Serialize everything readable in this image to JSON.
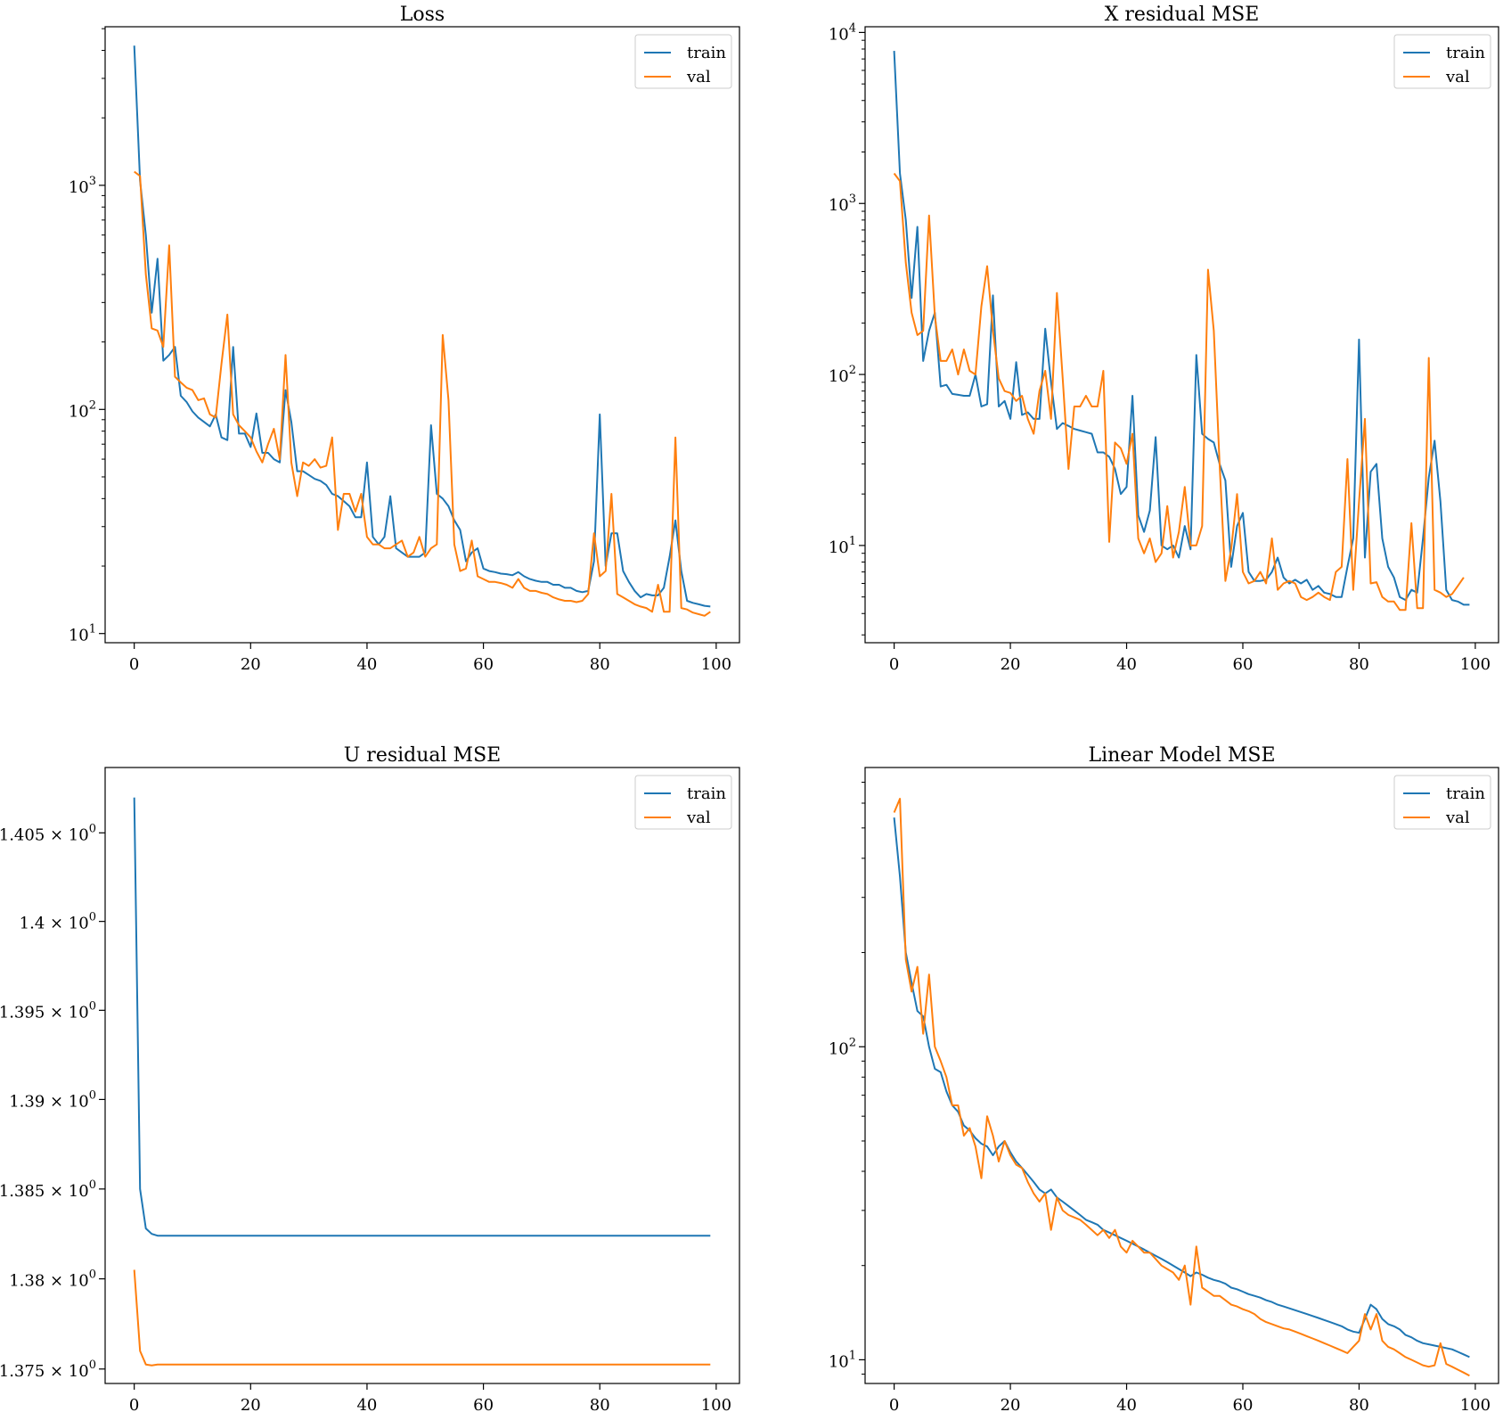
{
  "colors": {
    "train": "#1f77b4",
    "val": "#ff7f0e"
  },
  "chart_data": [
    {
      "type": "line",
      "title": "Loss",
      "yscale": "log",
      "xlim": [
        -5,
        104
      ],
      "ylim": [
        9.1,
        5100
      ],
      "xticks": [
        0,
        20,
        40,
        60,
        80,
        100
      ],
      "yticks": [
        {
          "value": 10,
          "mant": "10",
          "exp": "1"
        },
        {
          "value": 100,
          "mant": "10",
          "exp": "2"
        },
        {
          "value": 1000,
          "mant": "10",
          "exp": "3"
        }
      ],
      "legend": "top-right",
      "series": [
        {
          "name": "train",
          "color": "#1f77b4",
          "values": [
            4200,
            1050,
            600,
            270,
            470,
            165,
            175,
            190,
            115,
            108,
            98,
            92,
            88,
            84,
            95,
            75,
            73,
            190,
            78,
            78,
            68,
            96,
            64,
            64,
            60,
            58,
            122,
            88,
            53,
            53,
            51,
            49,
            48,
            46,
            42,
            41,
            39,
            37,
            33,
            33,
            58,
            27,
            25,
            27,
            41,
            24,
            23,
            22,
            22,
            22,
            23,
            85,
            42,
            40,
            37,
            32,
            29,
            21,
            23,
            24,
            19.5,
            19,
            18.8,
            18.5,
            18.4,
            18.2,
            18.8,
            18,
            17.5,
            17.2,
            17,
            17,
            16.5,
            16.5,
            16,
            16,
            15.5,
            15.3,
            15.5,
            21,
            95,
            20,
            28,
            28,
            19,
            17,
            15.5,
            14.5,
            15,
            14.8,
            14.8,
            16,
            22,
            32,
            19,
            14,
            13.7,
            13.5,
            13.3,
            13.2
          ]
        },
        {
          "name": "val",
          "color": "#ff7f0e",
          "values": [
            1150,
            1100,
            400,
            230,
            225,
            190,
            540,
            140,
            132,
            125,
            122,
            110,
            112,
            95,
            92,
            160,
            265,
            95,
            85,
            80,
            75,
            65,
            58,
            70,
            82,
            60,
            175,
            58,
            41,
            58,
            56,
            60,
            55,
            56,
            75,
            29,
            42,
            42,
            35,
            42,
            27,
            25,
            25,
            24,
            24,
            25,
            26,
            22,
            23,
            27,
            22,
            24,
            25,
            215,
            110,
            25,
            19,
            19.5,
            26,
            18,
            17.5,
            17,
            17,
            16.8,
            16.5,
            16,
            17.5,
            16,
            15.5,
            15.5,
            15.2,
            15,
            14.5,
            14.2,
            14,
            14,
            13.8,
            14,
            15,
            28,
            18,
            19,
            42,
            15,
            14.5,
            14,
            13.5,
            13.2,
            13,
            12.5,
            16.5,
            12.5,
            12.5,
            75,
            13,
            12.8,
            12.4,
            12.2,
            12,
            12.5
          ]
        }
      ]
    },
    {
      "type": "line",
      "title": "X residual MSE",
      "yscale": "log",
      "xlim": [
        -5,
        104
      ],
      "ylim": [
        2.7,
        10800
      ],
      "xticks": [
        0,
        20,
        40,
        60,
        80,
        100
      ],
      "yticks": [
        {
          "value": 10,
          "mant": "10",
          "exp": "1"
        },
        {
          "value": 100,
          "mant": "10",
          "exp": "2"
        },
        {
          "value": 1000,
          "mant": "10",
          "exp": "3"
        },
        {
          "value": 10000,
          "mant": "10",
          "exp": "4"
        }
      ],
      "legend": "top-right",
      "series": [
        {
          "name": "train",
          "color": "#1f77b4",
          "values": [
            7800,
            1500,
            800,
            280,
            730,
            120,
            180,
            230,
            85,
            87,
            77,
            76,
            75,
            75,
            100,
            65,
            67,
            290,
            65,
            70,
            55,
            118,
            58,
            60,
            55,
            55,
            185,
            90,
            48,
            52,
            50,
            48,
            47,
            46,
            45,
            35,
            35,
            33,
            28,
            20,
            22,
            75,
            15,
            12,
            16,
            43,
            10,
            9.5,
            10,
            8.5,
            13,
            9.5,
            130,
            45,
            42,
            40,
            30,
            24,
            7.5,
            13,
            15.5,
            7,
            6.2,
            6.2,
            6.3,
            7,
            8.5,
            6.5,
            6,
            6.3,
            6,
            6.3,
            5.5,
            5.8,
            5.3,
            5.2,
            5,
            5,
            7.5,
            11,
            160,
            8.5,
            27,
            30,
            11,
            7.5,
            6.5,
            5,
            4.8,
            5.5,
            5.3,
            11,
            25,
            41,
            18,
            5.5,
            4.8,
            4.7,
            4.5,
            4.5
          ]
        },
        {
          "name": "val",
          "color": "#ff7f0e",
          "values": [
            1500,
            1350,
            450,
            230,
            170,
            180,
            850,
            220,
            120,
            120,
            140,
            100,
            140,
            105,
            100,
            250,
            430,
            180,
            95,
            80,
            78,
            70,
            75,
            55,
            45,
            80,
            105,
            55,
            300,
            95,
            28,
            65,
            65,
            75,
            65,
            65,
            105,
            10.5,
            40,
            37,
            30,
            45,
            11,
            9,
            11,
            8,
            9,
            17,
            8.5,
            12,
            22,
            10,
            10,
            13,
            410,
            180,
            30,
            6.2,
            9.5,
            20,
            7,
            6,
            6.2,
            7,
            6,
            11,
            5.5,
            6,
            6.2,
            6,
            5,
            4.8,
            5,
            5.3,
            5,
            4.8,
            7,
            7.5,
            32,
            5.5,
            18,
            55,
            6,
            6.1,
            5,
            4.7,
            4.7,
            4.2,
            4.2,
            13.5,
            4.3,
            4.3,
            125,
            5.5,
            5.3,
            5,
            5.2,
            5.8,
            6.5
          ]
        }
      ]
    },
    {
      "type": "line",
      "title": "U residual MSE",
      "yscale": "log",
      "xlim": [
        -5,
        104
      ],
      "ylim": [
        1.3742,
        1.4087
      ],
      "xticks": [
        0,
        20,
        40,
        60,
        80,
        100
      ],
      "yticks": [
        {
          "value": 1.375,
          "mant": "1.375 × 10",
          "exp": "0"
        },
        {
          "value": 1.38,
          "mant": "1.38 × 10",
          "exp": "0"
        },
        {
          "value": 1.385,
          "mant": "1.385 × 10",
          "exp": "0"
        },
        {
          "value": 1.39,
          "mant": "1.39 × 10",
          "exp": "0"
        },
        {
          "value": 1.395,
          "mant": "1.395 × 10",
          "exp": "0"
        },
        {
          "value": 1.4,
          "mant": "1.4 × 10",
          "exp": "0"
        },
        {
          "value": 1.405,
          "mant": "1.405 × 10",
          "exp": "0"
        }
      ],
      "legend": "top-right",
      "series": [
        {
          "name": "train",
          "color": "#1f77b4",
          "flat": 1.3824,
          "values": [
            1.407,
            1.385,
            1.3828,
            1.3825,
            1.3824
          ]
        },
        {
          "name": "val",
          "color": "#ff7f0e",
          "flat": 1.37525,
          "values": [
            1.3805,
            1.376,
            1.37525,
            1.3752,
            1.37525
          ]
        }
      ]
    },
    {
      "type": "line",
      "title": "Linear Model MSE",
      "yscale": "log",
      "xlim": [
        -5,
        104
      ],
      "ylim": [
        8.4,
        780
      ],
      "xticks": [
        0,
        20,
        40,
        60,
        80,
        100
      ],
      "yticks": [
        {
          "value": 10,
          "mant": "10",
          "exp": "1"
        },
        {
          "value": 100,
          "mant": "10",
          "exp": "2"
        }
      ],
      "legend": "top-right",
      "series": [
        {
          "name": "train",
          "color": "#1f77b4",
          "values": [
            540,
            350,
            200,
            160,
            130,
            125,
            100,
            85,
            83,
            72,
            65,
            62,
            56,
            54,
            51,
            49,
            48,
            45,
            48,
            50,
            46,
            43,
            41,
            39,
            37,
            35,
            34,
            35,
            33,
            32,
            31,
            30,
            29,
            28,
            27.5,
            27,
            26,
            25.5,
            25,
            24.5,
            24,
            23.5,
            23,
            22.5,
            22,
            21.5,
            21,
            20.5,
            20,
            19.5,
            19,
            18.5,
            19,
            18.7,
            18.3,
            18,
            17.8,
            17.5,
            17,
            16.8,
            16.5,
            16.2,
            16,
            15.8,
            15.5,
            15.3,
            15,
            14.8,
            14.6,
            14.4,
            14.2,
            14,
            13.8,
            13.6,
            13.4,
            13.2,
            13,
            12.8,
            12.5,
            12.3,
            12.2,
            13.5,
            15,
            14.5,
            13.5,
            13,
            12.8,
            12.5,
            12,
            11.8,
            11.5,
            11.3,
            11.2,
            11.1,
            11,
            10.9,
            10.8,
            10.6,
            10.4,
            10.2
          ]
        },
        {
          "name": "val",
          "color": "#ff7f0e",
          "values": [
            560,
            620,
            190,
            150,
            180,
            110,
            170,
            100,
            90,
            80,
            65,
            65,
            52,
            55,
            48,
            38,
            60,
            52,
            43,
            50,
            45,
            42,
            41,
            37,
            34,
            32,
            34,
            26,
            33,
            30,
            29,
            28.5,
            28,
            27,
            26,
            25,
            26,
            24.5,
            26,
            23,
            22,
            24,
            23,
            22,
            22,
            21,
            20,
            19.5,
            19,
            18,
            20,
            15,
            23,
            17,
            16.5,
            16,
            16,
            15.5,
            15,
            14.8,
            14.5,
            14.3,
            14,
            13.5,
            13.2,
            13,
            12.8,
            12.6,
            12.5,
            12.3,
            12.1,
            11.9,
            11.7,
            11.5,
            11.3,
            11.1,
            10.9,
            10.7,
            10.5,
            11,
            11.5,
            14,
            12.5,
            14,
            11.5,
            11,
            10.8,
            10.5,
            10.2,
            10,
            9.8,
            9.6,
            9.5,
            9.6,
            11.3,
            9.7,
            9.5,
            9.3,
            9.1,
            8.9
          ]
        }
      ]
    }
  ]
}
